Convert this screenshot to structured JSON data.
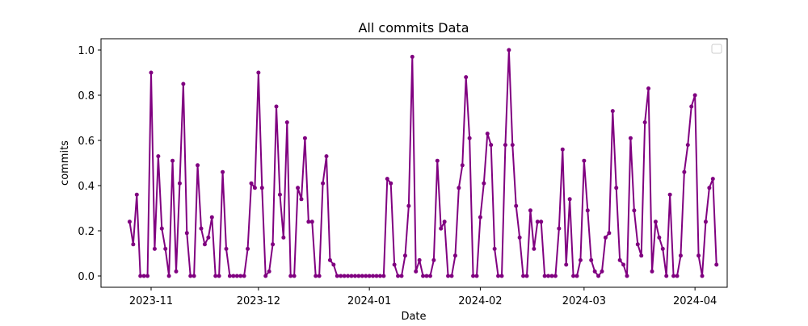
{
  "chart_data": {
    "type": "line",
    "title": "All commits Data",
    "xlabel": "Date",
    "ylabel": "commits",
    "x_start": "2023-10-26",
    "x_end": "2024-04-03",
    "xlim": [
      "2023-10-18",
      "2024-04-10"
    ],
    "ylim": [
      -0.05,
      1.05
    ],
    "x_ticks": [
      {
        "date": "2023-11-01",
        "label": "2023-11"
      },
      {
        "date": "2023-12-01",
        "label": "2023-12"
      },
      {
        "date": "2024-01-01",
        "label": "2024-01"
      },
      {
        "date": "2024-02-01",
        "label": "2024-02"
      },
      {
        "date": "2024-03-01",
        "label": "2024-03"
      },
      {
        "date": "2024-04-01",
        "label": "2024-04"
      }
    ],
    "y_ticks": [
      0.0,
      0.2,
      0.4,
      0.6,
      0.8,
      1.0
    ],
    "y_tick_labels": [
      "0.0",
      "0.2",
      "0.4",
      "0.6",
      "0.8",
      "1.0"
    ],
    "grid": false,
    "legend": {
      "placement": "top-right",
      "entries": []
    },
    "series": [
      {
        "color": "#800080",
        "marker": "circle",
        "values": [
          0.24,
          0.14,
          0.36,
          0.0,
          0.0,
          0.0,
          0.9,
          0.12,
          0.53,
          0.21,
          0.12,
          0.0,
          0.51,
          0.02,
          0.41,
          0.85,
          0.19,
          0.0,
          0.0,
          0.49,
          0.21,
          0.14,
          0.17,
          0.26,
          0.0,
          0.0,
          0.46,
          0.12,
          0.0,
          0.0,
          0.0,
          0.0,
          0.0,
          0.12,
          0.41,
          0.39,
          0.9,
          0.39,
          0.0,
          0.02,
          0.14,
          0.75,
          0.36,
          0.17,
          0.68,
          0.0,
          0.0,
          0.39,
          0.34,
          0.61,
          0.24,
          0.24,
          0.0,
          0.0,
          0.41,
          0.53,
          0.07,
          0.05,
          0.0,
          0.0,
          0.0,
          0.0,
          0.0,
          0.0,
          0.0,
          0.0,
          0.0,
          0.0,
          0.0,
          0.0,
          0.0,
          0.0,
          0.43,
          0.41,
          0.05,
          0.0,
          0.0,
          0.09,
          0.31,
          0.97,
          0.02,
          0.07,
          0.0,
          0.0,
          0.0,
          0.07,
          0.51,
          0.21,
          0.24,
          0.0,
          0.0,
          0.09,
          0.39,
          0.49,
          0.88,
          0.61,
          0.0,
          0.0,
          0.26,
          0.41,
          0.63,
          0.58,
          0.12,
          0.0,
          0.0,
          0.58,
          1.0,
          0.58,
          0.31,
          0.17,
          0.0,
          0.0,
          0.29,
          0.12,
          0.24,
          0.24,
          0.0,
          0.0,
          0.0,
          0.0,
          0.21,
          0.56,
          0.05,
          0.34,
          0.0,
          0.0,
          0.07,
          0.51,
          0.29,
          0.07,
          0.02,
          0.0,
          0.02,
          0.17,
          0.19,
          0.73,
          0.39,
          0.07,
          0.05,
          0.0,
          0.61,
          0.29,
          0.14,
          0.09,
          0.68,
          0.83,
          0.02,
          0.24,
          0.17,
          0.12,
          0.0,
          0.36,
          0.0,
          0.0,
          0.09,
          0.46,
          0.58,
          0.75,
          0.8,
          0.09,
          0.0,
          0.24,
          0.39,
          0.43,
          0.05
        ]
      }
    ]
  }
}
